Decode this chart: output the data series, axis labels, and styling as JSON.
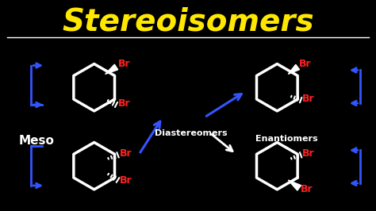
{
  "title": "Stereoisomers",
  "title_color": "#FFE800",
  "bg_color": "#000000",
  "white": "#FFFFFF",
  "blue": "#3355FF",
  "red": "#FF2020",
  "label_meso": "Meso",
  "label_diast": "Diastereomers",
  "label_enanti": "Enantiomers",
  "br_label": "Br",
  "title_fontsize": 28,
  "label_fontsize": 10,
  "br_fontsize": 9
}
